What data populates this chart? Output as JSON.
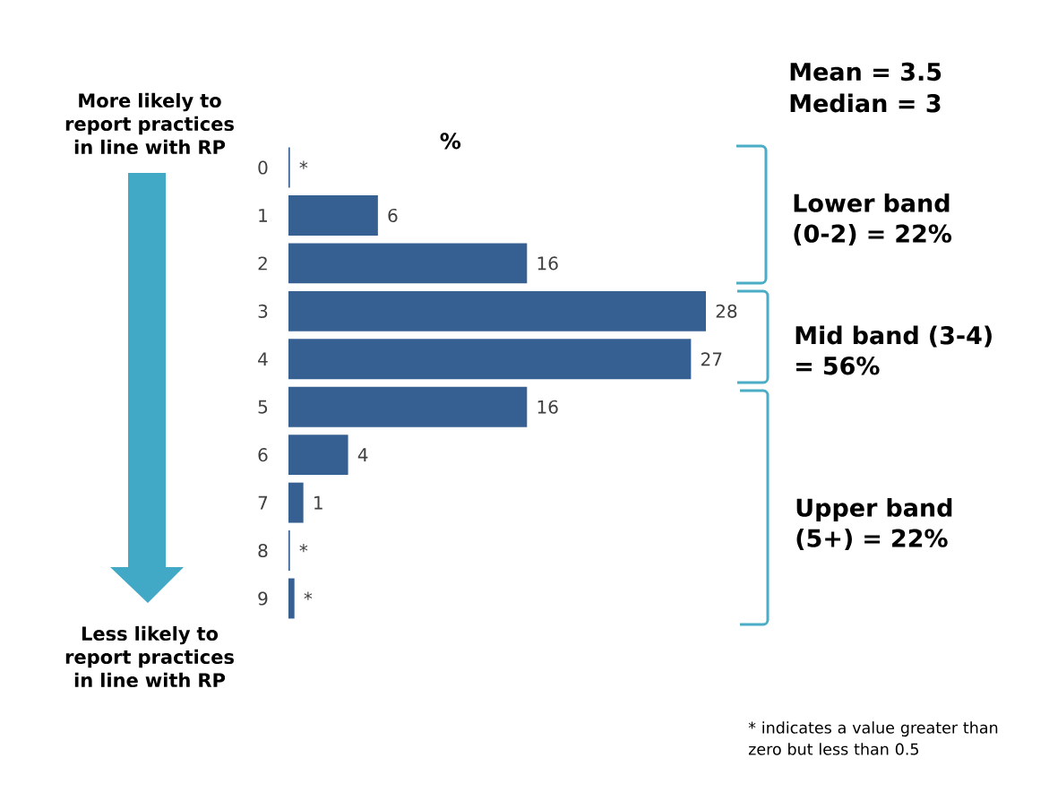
{
  "chart_data": {
    "type": "bar",
    "orientation": "horizontal",
    "title": "%",
    "categories": [
      "0",
      "1",
      "2",
      "3",
      "4",
      "5",
      "6",
      "7",
      "8",
      "9"
    ],
    "values": [
      0.1,
      6,
      16,
      28,
      27,
      16,
      4,
      1,
      0.1,
      0.4
    ],
    "value_labels": [
      "*",
      "6",
      "16",
      "28",
      "27",
      "16",
      "4",
      "1",
      "*",
      "*"
    ],
    "color": "#376092",
    "annotations": [
      "Mean = 3.5",
      "Median = 3",
      "More likely to report practices in line with RP",
      "Less likely to report practices in line with RP",
      "Lower band (0-2) = 22%",
      "Mid band (3-4) = 56%",
      "Upper band (5+) = 22%",
      "* indicates a value greater than zero but less than 0.5"
    ]
  }
}
